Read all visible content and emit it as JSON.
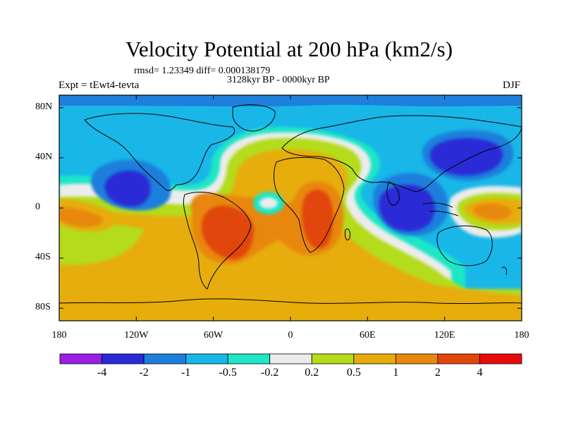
{
  "title": "Velocity Potential at 200 hPa (km2/s)",
  "stats": "rmsd= 1.23349  diff= 0.000138179",
  "period": "3128kyr BP - 0000kyr BP",
  "experiment": "Expt = tEwt4-tevta",
  "season": "DJF",
  "map": {
    "projection": "cylindrical-equidistant",
    "lon_range": [
      -180,
      180
    ],
    "lat_range": [
      -90,
      90
    ],
    "lon_ticks": [
      {
        "value": -180,
        "label": "180"
      },
      {
        "value": -120,
        "label": "120W"
      },
      {
        "value": -60,
        "label": "60W"
      },
      {
        "value": 0,
        "label": "0"
      },
      {
        "value": 60,
        "label": "60E"
      },
      {
        "value": 120,
        "label": "120E"
      },
      {
        "value": 180,
        "label": "180"
      }
    ],
    "lat_ticks": [
      {
        "value": 80,
        "label": "80N"
      },
      {
        "value": 40,
        "label": "40N"
      },
      {
        "value": 0,
        "label": "0"
      },
      {
        "value": -40,
        "label": "40S"
      },
      {
        "value": -80,
        "label": "80S"
      }
    ]
  },
  "colorbar": {
    "colors": [
      "#9a20e6",
      "#2a2ad6",
      "#1f7fdc",
      "#18b7e8",
      "#1fe6c6",
      "#ececec",
      "#b4dc1a",
      "#e6ad0a",
      "#e8870e",
      "#e1460b",
      "#e80b0b"
    ],
    "labels": [
      "-4",
      "-2",
      "-1",
      "-0.5",
      "-0.2",
      "0.2",
      "0.5",
      "1",
      "2",
      "4"
    ]
  }
}
